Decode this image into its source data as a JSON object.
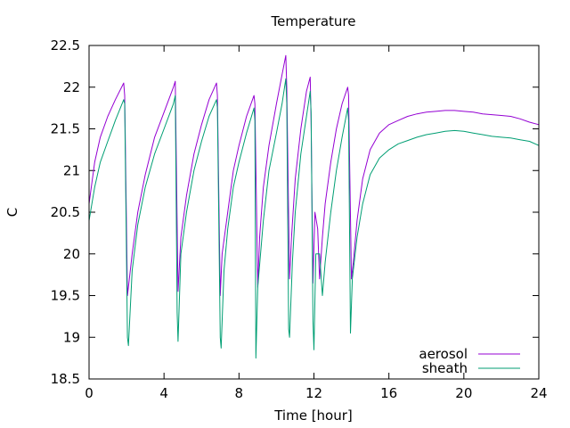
{
  "chart_data": {
    "type": "line",
    "title": "Temperature",
    "xlabel": "Time [hour]",
    "ylabel": "C",
    "xlim": [
      0,
      24
    ],
    "ylim": [
      18.5,
      22.5
    ],
    "xticks": [
      0,
      4,
      8,
      12,
      16,
      20,
      24
    ],
    "yticks": [
      18.5,
      19,
      19.5,
      20,
      20.5,
      21,
      21.5,
      22,
      22.5
    ],
    "grid": false,
    "legend_position": "bottom-right",
    "series": [
      {
        "name": "aerosol",
        "color": "#9400d3",
        "x": [
          0,
          0.3,
          0.6,
          1.0,
          1.4,
          1.85,
          1.9,
          2.05,
          2.3,
          2.6,
          3.0,
          3.5,
          4.0,
          4.5,
          4.6,
          4.75,
          4.9,
          5.2,
          5.6,
          6.0,
          6.4,
          6.8,
          6.85,
          7.0,
          7.1,
          7.4,
          7.7,
          8.0,
          8.4,
          8.8,
          8.85,
          9.0,
          9.1,
          9.3,
          9.6,
          10.0,
          10.3,
          10.5,
          10.55,
          10.7,
          10.8,
          11.0,
          11.3,
          11.6,
          11.8,
          11.85,
          11.95,
          12.05,
          12.2,
          12.3,
          12.45,
          12.6,
          12.9,
          13.2,
          13.5,
          13.8,
          13.85,
          14.0,
          14.1,
          14.3,
          14.6,
          15.0,
          15.5,
          16.0,
          16.5,
          17.0,
          17.5,
          18.0,
          18.5,
          19.0,
          19.5,
          20.0,
          20.5,
          21.0,
          21.5,
          22.0,
          22.5,
          23.0,
          23.5,
          24.0
        ],
        "values": [
          20.6,
          21.1,
          21.4,
          21.65,
          21.85,
          22.05,
          21.9,
          19.5,
          20.0,
          20.5,
          20.95,
          21.4,
          21.7,
          22.0,
          22.07,
          19.55,
          20.2,
          20.7,
          21.2,
          21.55,
          21.85,
          22.05,
          21.9,
          19.5,
          20.0,
          20.5,
          21.0,
          21.3,
          21.65,
          21.9,
          21.8,
          19.6,
          20.2,
          20.8,
          21.3,
          21.8,
          22.15,
          22.38,
          22.0,
          19.7,
          20.2,
          20.9,
          21.5,
          21.95,
          22.12,
          21.6,
          19.65,
          20.5,
          20.3,
          19.7,
          20.2,
          20.6,
          21.1,
          21.5,
          21.8,
          22.0,
          21.9,
          19.7,
          19.9,
          20.4,
          20.9,
          21.25,
          21.45,
          21.55,
          21.6,
          21.65,
          21.68,
          21.7,
          21.71,
          21.72,
          21.72,
          21.71,
          21.7,
          21.68,
          21.67,
          21.66,
          21.65,
          21.62,
          21.58,
          21.55
        ]
      },
      {
        "name": "sheath",
        "color": "#009e73",
        "x": [
          0,
          0.3,
          0.6,
          1.0,
          1.4,
          1.85,
          1.9,
          2.05,
          2.1,
          2.3,
          2.6,
          3.0,
          3.5,
          4.0,
          4.5,
          4.6,
          4.7,
          4.75,
          4.9,
          5.2,
          5.6,
          6.0,
          6.4,
          6.8,
          6.85,
          7.0,
          7.05,
          7.2,
          7.4,
          7.7,
          8.0,
          8.4,
          8.8,
          8.85,
          8.9,
          9.0,
          9.3,
          9.6,
          10.0,
          10.3,
          10.5,
          10.55,
          10.65,
          10.7,
          10.85,
          11.0,
          11.3,
          11.6,
          11.8,
          11.85,
          11.95,
          12.0,
          12.1,
          12.3,
          12.45,
          12.6,
          12.9,
          13.2,
          13.5,
          13.8,
          13.85,
          13.95,
          14.05,
          14.3,
          14.6,
          15.0,
          15.5,
          16.0,
          16.5,
          17.0,
          17.5,
          18.0,
          18.5,
          19.0,
          19.5,
          20.0,
          20.5,
          21.0,
          21.5,
          22.0,
          22.5,
          23.0,
          23.5,
          24.0
        ],
        "values": [
          20.4,
          20.8,
          21.1,
          21.35,
          21.6,
          21.85,
          21.8,
          19.0,
          18.9,
          19.8,
          20.35,
          20.8,
          21.2,
          21.5,
          21.8,
          21.9,
          19.3,
          18.95,
          20.0,
          20.5,
          21.0,
          21.35,
          21.65,
          21.85,
          21.75,
          19.0,
          18.87,
          19.8,
          20.3,
          20.8,
          21.1,
          21.45,
          21.75,
          21.6,
          18.75,
          19.6,
          20.4,
          21.0,
          21.45,
          21.8,
          22.1,
          21.8,
          19.1,
          19.0,
          19.9,
          20.5,
          21.2,
          21.65,
          21.95,
          21.7,
          19.2,
          18.85,
          20.0,
          20.0,
          19.5,
          19.9,
          20.5,
          21.0,
          21.4,
          21.75,
          21.6,
          19.05,
          19.7,
          20.2,
          20.6,
          20.95,
          21.15,
          21.25,
          21.32,
          21.36,
          21.4,
          21.43,
          21.45,
          21.47,
          21.48,
          21.47,
          21.45,
          21.43,
          21.41,
          21.4,
          21.39,
          21.37,
          21.35,
          21.3
        ]
      }
    ]
  }
}
